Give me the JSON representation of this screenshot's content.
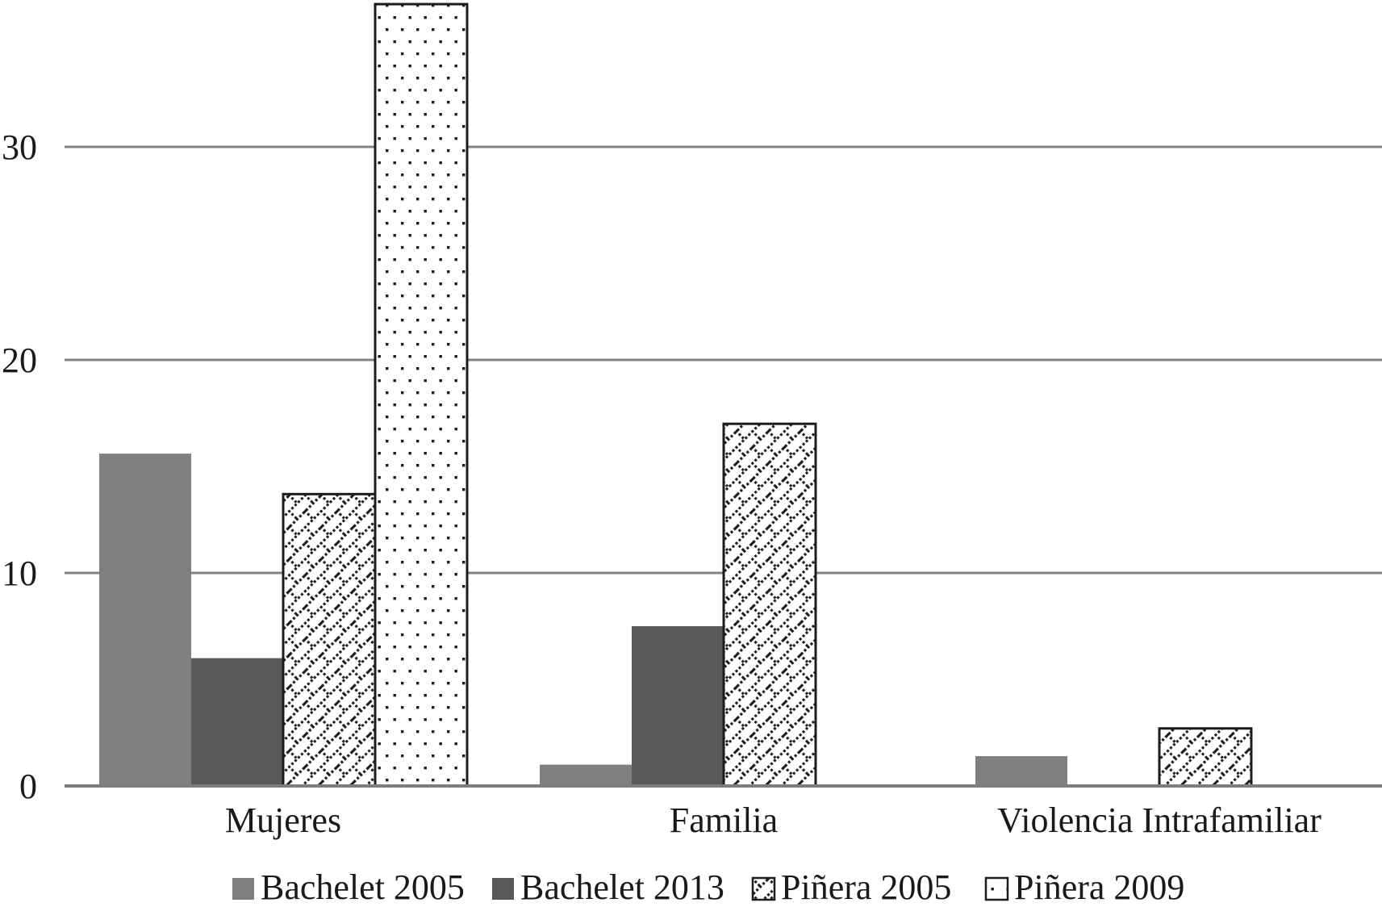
{
  "chart_data": {
    "type": "bar",
    "title": "",
    "categories": [
      "Mujeres",
      "Familia",
      "Violencia Intrafamiliar"
    ],
    "series": [
      {
        "name": "Bachelet 2005",
        "style": "solid",
        "color": "#7f7f7f",
        "values": [
          15.6,
          1.0,
          1.4
        ]
      },
      {
        "name": "Bachelet 2013",
        "style": "solid",
        "color": "#595959",
        "values": [
          6.0,
          7.5,
          0
        ]
      },
      {
        "name": "Piñera 2005",
        "style": "crosshatch",
        "color": "#ffffff",
        "values": [
          13.7,
          17.0,
          2.7
        ]
      },
      {
        "name": "Piñera 2009",
        "style": "dots",
        "color": "#ffffff",
        "values": [
          36.7,
          0,
          0
        ]
      }
    ],
    "xlabel": "",
    "ylabel": "",
    "y_axis": {
      "ticks": [
        0,
        10,
        20,
        30
      ],
      "max_visible": 36.9
    },
    "grid": true,
    "legend_position": "bottom",
    "colors": {
      "gridline": "#808080",
      "axis_line": "#7d7d7d",
      "pattern_ink": "#1c1c1c",
      "text": "#1a1a1a",
      "background": "#ffffff"
    }
  }
}
